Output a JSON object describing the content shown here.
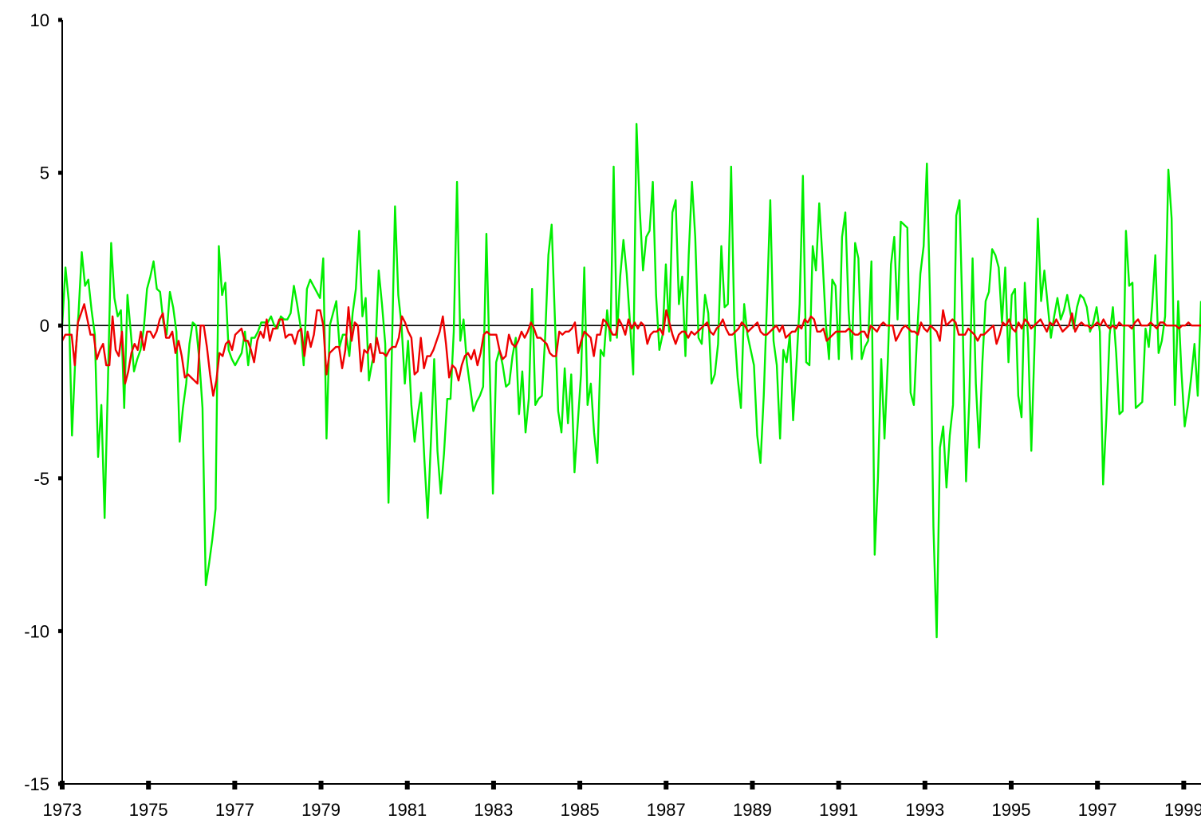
{
  "chart_data": {
    "type": "line",
    "title": "",
    "xlabel": "",
    "ylabel": "",
    "xlim": [
      1973.0,
      1999.4
    ],
    "ylim": [
      -15,
      10
    ],
    "y_ticks": [
      10,
      5,
      0,
      -5,
      -10,
      -15
    ],
    "y_tick_labels": [
      "10",
      "5",
      "0",
      "-5",
      "-10",
      "-15"
    ],
    "x_ticks": [
      1973,
      1975,
      1977,
      1979,
      1981,
      1983,
      1985,
      1987,
      1989,
      1991,
      1993,
      1995,
      1997,
      1999
    ],
    "x_tick_labels": [
      "1973",
      "1975",
      "1977",
      "1979",
      "1981",
      "1983",
      "1985",
      "1987",
      "1989",
      "1991",
      "1993",
      "1995",
      "1997",
      "1999"
    ],
    "reference_line_y": 0,
    "grid": false,
    "legend": "none",
    "colors": {
      "series_1": "#00ee00",
      "series_2": "#ee0000",
      "axis": "#000000",
      "reference_line": "#000000"
    },
    "series": [
      {
        "values": [
          0.0,
          1.9,
          0.8,
          -3.6,
          -1.1,
          0.4,
          2.4,
          1.3,
          1.5,
          0.5,
          -0.3,
          -4.3,
          -2.6,
          -6.3,
          -1.9,
          2.7,
          0.9,
          0.3,
          0.5,
          -2.7,
          1.0,
          -0.2,
          -1.5,
          -1.1,
          -0.8,
          -0.1,
          1.2,
          1.6,
          2.1,
          1.2,
          1.1,
          0.1,
          -0.3,
          1.1,
          0.6,
          -0.2,
          -3.8,
          -2.7,
          -1.9,
          -0.6,
          0.1,
          0.0,
          -1.1,
          -2.7,
          -8.5,
          -7.8,
          -7.0,
          -6.0,
          2.6,
          1.0,
          1.4,
          -0.8,
          -1.1,
          -1.3,
          -1.1,
          -0.9,
          -0.2,
          -1.3,
          -0.4,
          -0.4,
          -0.2,
          0.1,
          0.1,
          0.1,
          0.3,
          0.0,
          -0.1,
          0.3,
          0.2,
          0.2,
          0.4,
          1.3,
          0.7,
          0.0,
          -1.3,
          1.2,
          1.5,
          1.3,
          1.1,
          0.9,
          2.2,
          -3.7,
          0.0,
          0.4,
          0.8,
          -0.7,
          -0.3,
          -0.3,
          -1.0,
          0.4,
          1.2,
          3.1,
          0.3,
          0.9,
          -1.8,
          -1.2,
          -0.8,
          1.8,
          0.7,
          -0.6,
          -5.8,
          -1.0,
          3.9,
          1.0,
          0.0,
          -1.9,
          -0.5,
          -2.6,
          -3.8,
          -2.9,
          -2.2,
          -4.4,
          -6.3,
          -3.8,
          -1.1,
          -4.1,
          -5.5,
          -4.2,
          -2.4,
          -2.4,
          -0.2,
          4.7,
          -0.5,
          0.2,
          -1.2,
          -2.0,
          -2.8,
          -2.5,
          -2.3,
          -2.0,
          3.0,
          -1.3,
          -5.5,
          -1.2,
          -0.8,
          -1.3,
          -2.0,
          -1.9,
          -1.0,
          -0.4,
          -2.9,
          -1.5,
          -3.5,
          -2.4,
          1.2,
          -2.6,
          -2.4,
          -2.3,
          -0.4,
          2.3,
          3.3,
          0.2,
          -2.8,
          -3.5,
          -1.4,
          -3.2,
          -1.6,
          -4.8,
          -3.2,
          -1.6,
          1.9,
          -2.6,
          -1.9,
          -3.5,
          -4.5,
          -0.8,
          -1.0,
          0.5,
          -0.5,
          5.2,
          -0.4,
          1.6,
          2.8,
          1.7,
          0.1,
          -1.6,
          6.6,
          3.8,
          1.8,
          2.9,
          3.1,
          4.7,
          1.0,
          -0.8,
          -0.3,
          2.0,
          -0.2,
          3.7,
          4.1,
          0.7,
          1.6,
          -1.0,
          2.3,
          4.7,
          2.9,
          -0.4,
          -0.6,
          1.0,
          0.4,
          -1.9,
          -1.6,
          -0.6,
          2.6,
          0.6,
          0.7,
          5.2,
          -0.1,
          -1.7,
          -2.7,
          0.7,
          -0.3,
          -0.8,
          -1.3,
          -3.6,
          -4.5,
          -2.3,
          0.8,
          4.1,
          -0.5,
          -1.3,
          -3.7,
          -0.8,
          -1.2,
          -0.3,
          -3.1,
          -1.3,
          0.7,
          4.9,
          -1.2,
          -1.3,
          2.6,
          1.8,
          4.0,
          2.2,
          0.1,
          -1.1,
          1.5,
          1.3,
          -1.1,
          2.9,
          3.7,
          0.5,
          -1.1,
          2.7,
          2.2,
          -1.1,
          -0.7,
          -0.5,
          2.1,
          -7.5,
          -5.0,
          -1.1,
          -3.7,
          -1.2,
          2.0,
          2.9,
          0.2,
          3.4,
          3.3,
          3.2,
          -2.2,
          -2.6,
          -0.3,
          1.7,
          2.6,
          5.3,
          0.6,
          -6.6,
          -10.2,
          -4.0,
          -3.3,
          -5.3,
          -3.6,
          -2.6,
          3.6,
          4.1,
          -0.1,
          -5.1,
          -2.4,
          2.2,
          -1.9,
          -4.0,
          -1.2,
          0.8,
          1.1,
          2.5,
          2.3,
          1.9,
          0.1,
          1.9,
          -1.2,
          1.0,
          1.2,
          -2.3,
          -3.0,
          1.4,
          -0.4,
          -4.1,
          -0.6,
          3.5,
          0.8,
          1.8,
          0.7,
          -0.4,
          0.3,
          0.9,
          0.2,
          0.5,
          1.0,
          0.4,
          -0.1,
          0.6,
          1.0,
          0.9,
          0.6,
          -0.2,
          0.1,
          0.6,
          -0.2,
          -5.2,
          -3.0,
          -0.3,
          0.6,
          -0.9,
          -2.9,
          -2.8,
          3.1,
          1.3,
          1.4,
          -2.7,
          -2.6,
          -2.5,
          -0.1,
          -0.7,
          0.6,
          2.3,
          -0.9,
          -0.5,
          0.3,
          5.1,
          3.5,
          -2.6,
          0.8,
          -1.5,
          -3.3,
          -2.6,
          -1.7,
          -0.6,
          -2.3,
          0.8
        ],
        "color": "#00ee00"
      },
      {
        "values": [
          -0.5,
          -0.3,
          -0.3,
          -0.3,
          -1.3,
          0.1,
          0.4,
          0.7,
          0.2,
          -0.3,
          -0.3,
          -1.1,
          -0.8,
          -0.6,
          -1.3,
          -1.3,
          0.3,
          -0.8,
          -1.0,
          -0.2,
          -1.9,
          -1.5,
          -0.9,
          -0.6,
          -0.8,
          -0.2,
          -0.8,
          -0.2,
          -0.2,
          -0.4,
          -0.2,
          0.2,
          0.4,
          -0.4,
          -0.4,
          -0.2,
          -0.9,
          -0.5,
          -1.0,
          -1.7,
          -1.6,
          -1.7,
          -1.8,
          -1.9,
          0.0,
          0.0,
          -0.7,
          -1.6,
          -2.3,
          -1.8,
          -0.9,
          -1.0,
          -0.6,
          -0.5,
          -0.8,
          -0.3,
          -0.2,
          -0.1,
          -0.5,
          -0.5,
          -0.8,
          -1.2,
          -0.5,
          -0.2,
          -0.4,
          0.2,
          -0.5,
          -0.1,
          -0.1,
          0.2,
          0.2,
          -0.4,
          -0.3,
          -0.3,
          -0.6,
          -0.2,
          -0.1,
          -1.0,
          -0.2,
          -0.7,
          -0.3,
          0.5,
          0.5,
          0.0,
          -1.6,
          -0.9,
          -0.8,
          -0.7,
          -0.7,
          -1.4,
          -0.8,
          0.6,
          -0.5,
          0.1,
          0.0,
          -1.5,
          -0.8,
          -0.9,
          -0.6,
          -1.2,
          -0.4,
          -0.9,
          -0.9,
          -1.0,
          -0.8,
          -0.7,
          -0.7,
          -0.4,
          0.3,
          0.1,
          -0.2,
          -0.4,
          -1.6,
          -1.5,
          -0.4,
          -1.4,
          -1.0,
          -1.0,
          -0.8,
          -0.5,
          -0.2,
          0.3,
          -0.6,
          -1.7,
          -1.3,
          -1.4,
          -1.8,
          -1.3,
          -1.0,
          -0.9,
          -1.1,
          -0.8,
          -1.3,
          -0.9,
          -0.3,
          -0.2,
          -0.3,
          -0.3,
          -0.3,
          -0.8,
          -1.1,
          -1.0,
          -0.3,
          -0.6,
          -0.7,
          -0.5,
          -0.2,
          -0.4,
          -0.2,
          0.1,
          -0.1,
          -0.4,
          -0.4,
          -0.5,
          -0.6,
          -0.9,
          -1.0,
          -1.0,
          -0.2,
          -0.3,
          -0.2,
          -0.2,
          -0.1,
          0.1,
          -0.9,
          -0.5,
          -0.2,
          -0.3,
          -0.4,
          -1.0,
          -0.3,
          -0.3,
          0.2,
          0.1,
          -0.1,
          -0.3,
          -0.3,
          0.2,
          0.0,
          -0.3,
          0.2,
          -0.1,
          0.1,
          -0.1,
          0.1,
          0.0,
          -0.6,
          -0.3,
          -0.2,
          -0.2,
          -0.1,
          -0.3,
          0.5,
          0.1,
          -0.3,
          -0.6,
          -0.3,
          -0.2,
          -0.2,
          -0.4,
          -0.2,
          -0.3,
          -0.2,
          -0.1,
          0.0,
          0.1,
          -0.2,
          -0.3,
          -0.1,
          0.0,
          0.2,
          -0.1,
          -0.3,
          -0.3,
          -0.2,
          -0.1,
          0.1,
          0.0,
          -0.2,
          -0.1,
          0.0,
          0.1,
          -0.2,
          -0.3,
          -0.3,
          -0.2,
          -0.1,
          0.0,
          -0.2,
          0.0,
          -0.4,
          -0.3,
          -0.2,
          -0.2,
          0.0,
          -0.1,
          0.2,
          0.1,
          0.3,
          0.2,
          -0.2,
          -0.2,
          -0.1,
          -0.5,
          -0.4,
          -0.3,
          -0.2,
          -0.2,
          -0.2,
          -0.2,
          -0.1,
          -0.2,
          -0.3,
          -0.3,
          -0.2,
          -0.2,
          -0.4,
          0.0,
          -0.1,
          -0.2,
          0.0,
          0.1,
          0.0,
          0.0,
          0.0,
          -0.5,
          -0.3,
          -0.1,
          0.0,
          -0.1,
          -0.2,
          -0.2,
          -0.3,
          0.1,
          -0.1,
          -0.2,
          0.0,
          -0.1,
          -0.2,
          -0.5,
          0.5,
          0.0,
          0.1,
          0.2,
          0.1,
          -0.3,
          -0.3,
          -0.3,
          -0.1,
          -0.2,
          -0.3,
          -0.5,
          -0.3,
          -0.3,
          -0.2,
          -0.1,
          0.0,
          -0.6,
          -0.3,
          0.1,
          0.0,
          0.2,
          -0.1,
          -0.2,
          0.1,
          -0.1,
          0.2,
          0.1,
          -0.1,
          0.0,
          0.1,
          0.2,
          0.0,
          -0.2,
          0.1,
          0.0,
          0.2,
          0.0,
          -0.2,
          -0.1,
          0.0,
          0.4,
          -0.2,
          0.0,
          0.1,
          0.0,
          0.0,
          -0.1,
          0.0,
          0.1,
          0.0,
          0.2,
          0.0,
          -0.1,
          0.0,
          -0.1,
          0.1,
          0.0,
          0.0,
          0.0,
          -0.1,
          0.1,
          0.2,
          0.0,
          0.0,
          0.0,
          0.1,
          0.0,
          -0.1,
          0.1,
          0.1,
          0.0,
          0.0,
          0.0,
          0.0,
          -0.1,
          0.0,
          0.0,
          0.1,
          0.0,
          0.0,
          0.0,
          0.0
        ],
        "color": "#ee0000"
      }
    ]
  }
}
